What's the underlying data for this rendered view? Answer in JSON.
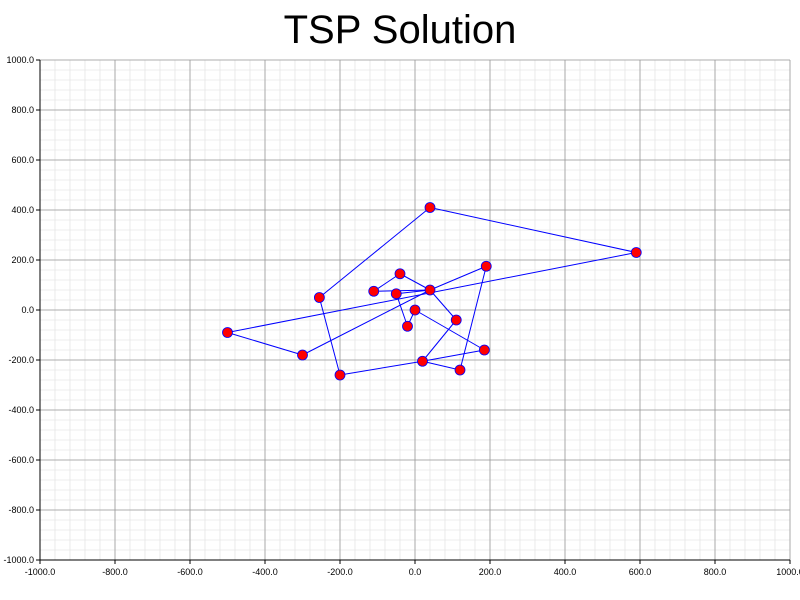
{
  "chart_data": {
    "type": "scatter",
    "title": "TSP Solution",
    "xlabel": "",
    "ylabel": "",
    "xlim": [
      -1000,
      1000
    ],
    "ylim": [
      -1000,
      1000
    ],
    "grid": true,
    "x_ticks": [
      -1000,
      -800,
      -600,
      -400,
      -200,
      0,
      200,
      400,
      600,
      800,
      1000
    ],
    "y_ticks": [
      -1000,
      -800,
      -600,
      -400,
      -200,
      0,
      200,
      400,
      600,
      800,
      1000
    ],
    "x_tick_labels": [
      "-1000.0",
      "-800.0",
      "-600.0",
      "-400.0",
      "-200.0",
      "0.0",
      "200.0",
      "400.0",
      "600.0",
      "800.0",
      "1000.0"
    ],
    "y_tick_labels": [
      "-1000.0",
      "-800.0",
      "-600.0",
      "-400.0",
      "-200.0",
      "0.0",
      "200.0",
      "400.0",
      "600.0",
      "800.0",
      "1000.0"
    ],
    "colors": {
      "route": "#0000ff",
      "city_fill": "#ff0000",
      "city_stroke": "#0000ff",
      "grid_major": "#999999",
      "grid_minor": "#dddddd"
    },
    "route": [
      {
        "x": 40,
        "y": 410
      },
      {
        "x": 590,
        "y": 230
      },
      {
        "x": -500,
        "y": -90
      },
      {
        "x": -300,
        "y": -180
      },
      {
        "x": 40,
        "y": 80
      },
      {
        "x": -110,
        "y": 75
      },
      {
        "x": -40,
        "y": 145
      },
      {
        "x": 40,
        "y": 80
      },
      {
        "x": 190,
        "y": 175
      },
      {
        "x": 120,
        "y": -240
      },
      {
        "x": 20,
        "y": -205
      },
      {
        "x": 185,
        "y": -160
      },
      {
        "x": 0,
        "y": 0
      },
      {
        "x": -20,
        "y": -65
      },
      {
        "x": -50,
        "y": 65
      },
      {
        "x": 40,
        "y": 80
      },
      {
        "x": 110,
        "y": -40
      },
      {
        "x": 20,
        "y": -205
      },
      {
        "x": -200,
        "y": -260
      },
      {
        "x": -255,
        "y": 50
      },
      {
        "x": 40,
        "y": 410
      }
    ],
    "cities": [
      {
        "x": 40,
        "y": 410
      },
      {
        "x": 590,
        "y": 230
      },
      {
        "x": -500,
        "y": -90
      },
      {
        "x": -300,
        "y": -180
      },
      {
        "x": -255,
        "y": 50
      },
      {
        "x": -200,
        "y": -260
      },
      {
        "x": -110,
        "y": 75
      },
      {
        "x": -40,
        "y": 145
      },
      {
        "x": -50,
        "y": 65
      },
      {
        "x": 40,
        "y": 80
      },
      {
        "x": 0,
        "y": 0
      },
      {
        "x": -20,
        "y": -65
      },
      {
        "x": 110,
        "y": -40
      },
      {
        "x": 190,
        "y": 175
      },
      {
        "x": 185,
        "y": -160
      },
      {
        "x": 120,
        "y": -240
      },
      {
        "x": 20,
        "y": -205
      }
    ]
  }
}
